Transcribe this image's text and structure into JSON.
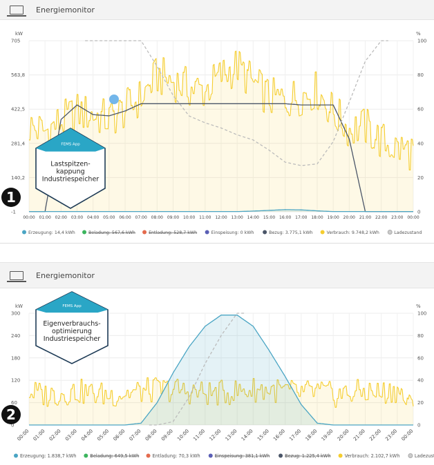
{
  "charts": [
    {
      "title": "Energiemonitor",
      "badge": {
        "label": "FEMS App",
        "lines": [
          "Lastspitzen-",
          "kappung",
          "Industriespeicher"
        ]
      },
      "marker": "1",
      "chart_data": {
        "type": "line",
        "left_unit": "kW",
        "right_unit": "%",
        "left_ticks": [
          "705",
          "563,8",
          "422,5",
          "281,4",
          "140,2",
          "-1"
        ],
        "right_ticks": [
          "100",
          "80",
          "60",
          "40",
          "20",
          "0"
        ],
        "ylim": [
          -1,
          705
        ],
        "ylim_right": [
          0,
          100
        ],
        "x": [
          "00:00",
          "01:00",
          "02:00",
          "03:00",
          "04:00",
          "05:00",
          "06:00",
          "07:00",
          "08:00",
          "09:00",
          "10:00",
          "11:00",
          "12:00",
          "13:00",
          "14:00",
          "15:00",
          "16:00",
          "17:00",
          "18:00",
          "19:00",
          "20:00",
          "21:00",
          "22:00",
          "23:00",
          "00:00"
        ],
        "series": [
          {
            "name": "Verbrauch",
            "color": "#f5cd2e",
            "axis": "left",
            "values": [
              350,
              330,
              370,
              410,
              400,
              380,
              420,
              470,
              560,
              540,
              510,
              500,
              560,
              600,
              530,
              470,
              460,
              480,
              500,
              410,
              340,
              350,
              290,
              260,
              250
            ]
          },
          {
            "name": "Bezug",
            "color": "#4a5568",
            "axis": "left",
            "values": [
              0,
              0,
              380,
              440,
              400,
              395,
              415,
              445,
              445,
              445,
              445,
              445,
              445,
              445,
              445,
              445,
              445,
              440,
              440,
              440,
              300,
              0,
              0,
              0,
              0
            ]
          },
          {
            "name": "Ladezustand",
            "color": "#bbbbbb",
            "axis": "right",
            "dashed": true,
            "values": [
              null,
              null,
              null,
              null,
              100,
              100,
              100,
              100,
              85,
              68,
              56,
              52,
              49,
              45,
              42,
              36,
              29,
              27,
              28,
              41,
              64,
              88,
              100,
              null,
              null
            ]
          },
          {
            "name": "Erzeugung",
            "color": "#4aa5c4",
            "axis": "left",
            "values": [
              0,
              0,
              0,
              0,
              0,
              0,
              0,
              0,
              0,
              0,
              0,
              0,
              0,
              0,
              2,
              5,
              8,
              7,
              3,
              0,
              0,
              0,
              0,
              0,
              0
            ]
          }
        ],
        "legend": [
          {
            "label": "Erzeugung: 14,4 kWh",
            "color": "#4aa5c4",
            "struck": false
          },
          {
            "label": "Beladung: 567,6 kWh",
            "color": "#3cb55e",
            "struck": true
          },
          {
            "label": "Entladung: 528,7 kWh",
            "color": "#e46b4e",
            "struck": true
          },
          {
            "label": "Einspeisung: 0 kWh",
            "color": "#5a5fb5",
            "struck": false
          },
          {
            "label": "Bezug: 3.775,1 kWh",
            "color": "#4a5568",
            "struck": false
          },
          {
            "label": "Verbrauch: 9.748,2 kWh",
            "color": "#f5cd2e",
            "struck": false
          },
          {
            "label": "Ladezustand",
            "color": "#cccccc",
            "struck": false
          }
        ]
      }
    },
    {
      "title": "Energiemonitor",
      "badge": {
        "label": "FEMS App",
        "lines": [
          "Eigenverbrauchs-",
          "optimierung",
          "Industriespeicher"
        ]
      },
      "marker": "2",
      "chart_data": {
        "type": "line",
        "left_unit": "kW",
        "right_unit": "%",
        "left_ticks": [
          "300",
          "240",
          "180",
          "120",
          "60",
          "0"
        ],
        "right_ticks": [
          "100",
          "80",
          "60",
          "40",
          "20",
          "0"
        ],
        "ylim": [
          0,
          300
        ],
        "ylim_right": [
          0,
          100
        ],
        "x": [
          "00:00",
          "01:00",
          "02:00",
          "03:00",
          "04:00",
          "05:00",
          "06:00",
          "07:00",
          "08:00",
          "09:00",
          "10:00",
          "11:00",
          "12:00",
          "13:00",
          "14:00",
          "15:00",
          "16:00",
          "17:00",
          "18:00",
          "19:00",
          "20:00",
          "21:00",
          "22:00",
          "23:00",
          "00:00"
        ],
        "series": [
          {
            "name": "Verbrauch",
            "color": "#f5cd2e",
            "axis": "left",
            "values": [
              90,
              80,
              85,
              90,
              85,
              80,
              85,
              90,
              95,
              95,
              90,
              85,
              85,
              90,
              95,
              95,
              90,
              85,
              90,
              80,
              85,
              90,
              85,
              95,
              40
            ]
          },
          {
            "name": "Erzeugung",
            "color": "#4aa5c4",
            "axis": "left",
            "values": [
              0,
              0,
              0,
              0,
              0,
              0,
              0,
              5,
              60,
              140,
              210,
              265,
              295,
              295,
              265,
              200,
              130,
              55,
              5,
              0,
              0,
              0,
              0,
              0,
              0
            ]
          },
          {
            "name": "Ladezustand",
            "color": "#bbbbbb",
            "axis": "right",
            "dashed": true,
            "values": [
              null,
              null,
              null,
              null,
              null,
              null,
              null,
              null,
              0,
              3,
              25,
              55,
              80,
              100,
              null,
              null,
              null,
              null,
              null,
              null,
              null,
              null,
              null,
              null,
              null
            ]
          }
        ],
        "legend": [
          {
            "label": "Erzeugung: 1.838,7 kWh",
            "color": "#4aa5c4",
            "struck": false
          },
          {
            "label": "Beladung: 649,5 kWh",
            "color": "#3cb55e",
            "struck": true
          },
          {
            "label": "Entladung: 70,3 kWh",
            "color": "#e46b4e",
            "struck": false
          },
          {
            "label": "Einspeisung: 381,1 kWh",
            "color": "#5a5fb5",
            "struck": true
          },
          {
            "label": "Bezug: 1.225,4 kWh",
            "color": "#4a5568",
            "struck": true
          },
          {
            "label": "Verbrauch: 2.102,7 kWh",
            "color": "#f5cd2e",
            "struck": false
          },
          {
            "label": "Ladezustand",
            "color": "#cccccc",
            "struck": false
          }
        ]
      }
    }
  ]
}
